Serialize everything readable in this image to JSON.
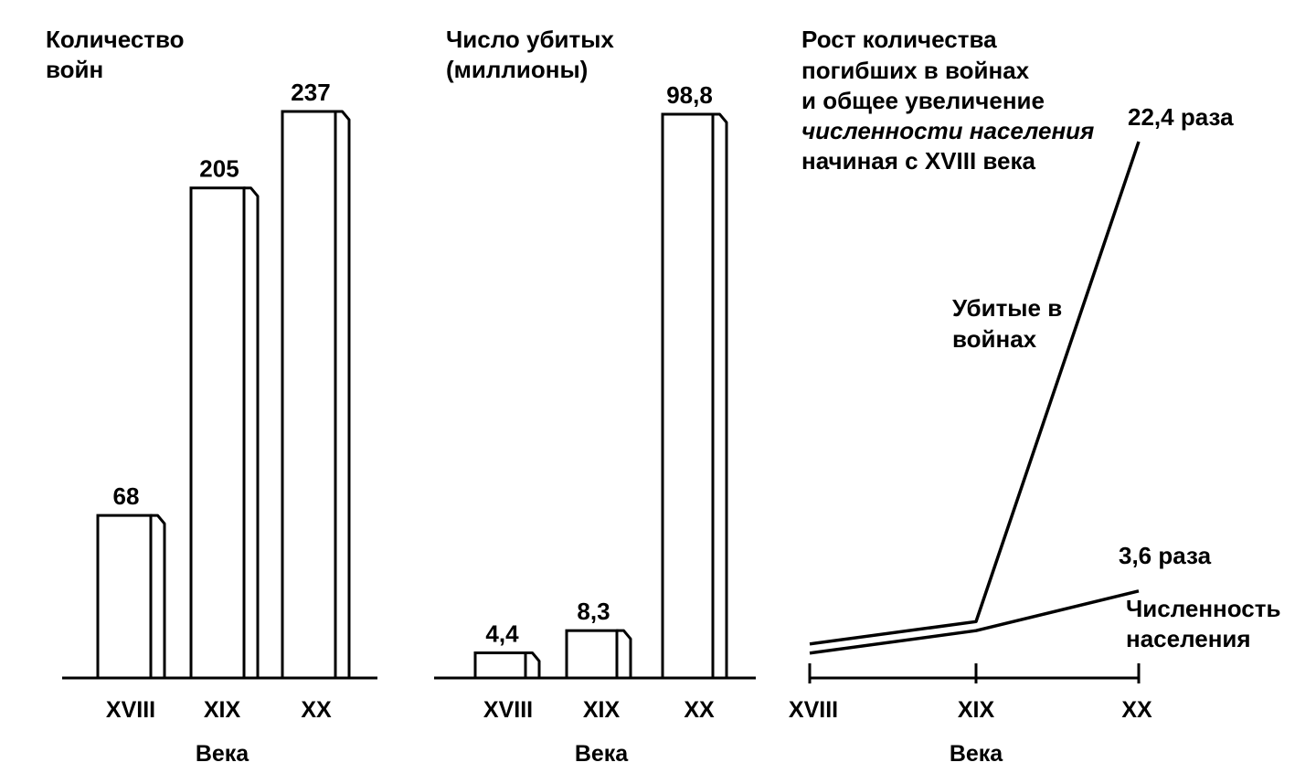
{
  "chart_data": [
    {
      "type": "bar",
      "title_lines": [
        "Количество",
        "войн"
      ],
      "categories": [
        "XVIII",
        "XIX",
        "XX"
      ],
      "values": [
        68,
        205,
        237
      ],
      "value_labels": [
        "68",
        "205",
        "237"
      ],
      "xlabel": "Века",
      "ylim": [
        0,
        237
      ]
    },
    {
      "type": "bar",
      "title_lines": [
        "Число убитых",
        "(миллионы)"
      ],
      "categories": [
        "XVIII",
        "XIX",
        "XX"
      ],
      "values": [
        4.4,
        8.3,
        98.8
      ],
      "value_labels": [
        "4,4",
        "8,3",
        "98,8"
      ],
      "xlabel": "Века",
      "ylim": [
        0,
        98.8
      ]
    },
    {
      "type": "line",
      "title_lines": [
        "Рост количества",
        "погибших в войнах",
        "и общее увеличение",
        "численности населения",
        "начиная с XVIII века"
      ],
      "categories": [
        "XVIII",
        "XIX",
        "XX"
      ],
      "xlabel": "Века",
      "series": [
        {
          "name_lines": [
            "Убитые в",
            "войнах"
          ],
          "values": [
            1.0,
            1.9,
            22.4
          ],
          "end_label": "22,4 раза"
        },
        {
          "name_lines": [
            "Численность",
            "населения"
          ],
          "values": [
            1.0,
            1.75,
            3.6
          ],
          "end_label": "3,6 раза"
        }
      ],
      "ylim": [
        0,
        22.4
      ]
    }
  ]
}
